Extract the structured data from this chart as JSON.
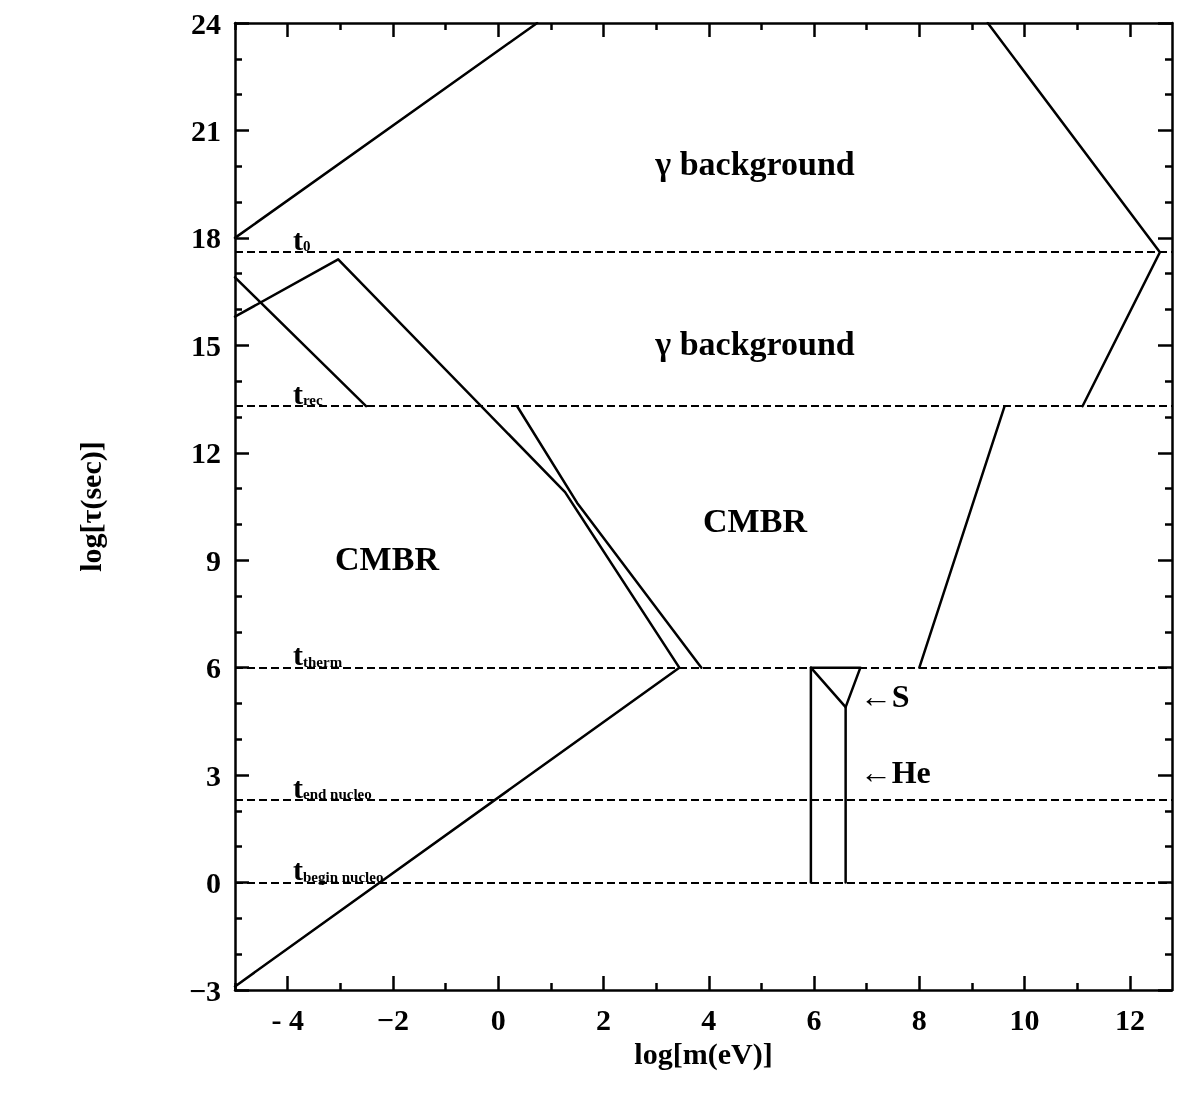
{
  "chart_data": {
    "type": "line",
    "xlabel": "log[m(eV)]",
    "ylabel": "log[τ(sec)]",
    "xlim": [
      -5,
      12.8
    ],
    "ylim": [
      -3,
      24
    ],
    "xticks": [
      {
        "value": -5,
        "label": null
      },
      {
        "value": -4,
        "label": "- 4"
      },
      {
        "value": -3,
        "label": null
      },
      {
        "value": -2,
        "label": "−2"
      },
      {
        "value": -1,
        "label": null
      },
      0,
      {
        "value": 1,
        "label": null
      },
      2,
      {
        "value": 3,
        "label": null
      },
      4,
      {
        "value": 5,
        "label": null
      },
      6,
      {
        "value": 7,
        "label": null
      },
      8,
      {
        "value": 9,
        "label": null
      },
      10,
      {
        "value": 11,
        "label": null
      },
      12
    ],
    "yticks": [
      {
        "value": -3,
        "label": "−3"
      },
      {
        "value": -2,
        "label": null
      },
      {
        "value": -1,
        "label": null
      },
      0,
      {
        "value": 1,
        "label": null
      },
      {
        "value": 2,
        "label": null
      },
      3,
      {
        "value": 4,
        "label": null
      },
      {
        "value": 5,
        "label": null
      },
      6,
      {
        "value": 7,
        "label": null
      },
      {
        "value": 8,
        "label": null
      },
      9,
      {
        "value": 10,
        "label": null
      },
      {
        "value": 11,
        "label": null
      },
      12,
      {
        "value": 13,
        "label": null
      },
      {
        "value": 14,
        "label": null
      },
      15,
      {
        "value": 16,
        "label": null
      },
      {
        "value": 17,
        "label": null
      },
      18,
      {
        "value": 19,
        "label": null
      },
      {
        "value": 20,
        "label": null
      },
      21,
      {
        "value": 22,
        "label": null
      },
      {
        "value": 23,
        "label": null
      },
      24
    ],
    "marker": "none",
    "line_style": "solid",
    "series": [
      {
        "color": "#000000",
        "x": [
          -5,
          0.74
        ],
        "values": [
          18,
          24
        ]
      },
      {
        "color": "#000000",
        "x": [
          9.3,
          12.57,
          11.1
        ],
        "values": [
          24,
          17.6,
          13.3
        ]
      },
      {
        "color": "#000000",
        "x": [
          -5,
          -2.51
        ],
        "values": [
          16.9,
          13.3
        ]
      },
      {
        "color": "#000000",
        "x": [
          -5,
          -3.04,
          1.27,
          3.44,
          -5
        ],
        "values": [
          15.8,
          17.4,
          10.9,
          6,
          -2.9
        ]
      },
      {
        "color": "#000000",
        "x": [
          0.36,
          1.5,
          3.86
        ],
        "values": [
          13.3,
          10.6,
          6
        ]
      },
      {
        "color": "#000000",
        "x": [
          8.0,
          9.62
        ],
        "values": [
          6,
          13.3
        ]
      },
      {
        "color": "#000000",
        "x": [
          5.94,
          5.94,
          6.88,
          6.6,
          6.6
        ],
        "values": [
          0,
          6,
          6,
          4.9,
          0
        ]
      },
      {
        "color": "#000000",
        "x": [
          5.94,
          6.6
        ],
        "values": [
          6,
          4.9
        ]
      }
    ],
    "ref_lines": [
      {
        "axis": "y",
        "value": 17.6,
        "label": "t$_{0}$",
        "color": "#000000",
        "line_style": "dashed"
      },
      {
        "axis": "y",
        "value": 13.3,
        "label": "t$_{rec}$",
        "color": "#000000",
        "line_style": "dashed"
      },
      {
        "axis": "y",
        "value": 6,
        "label": "t$_{therm}$",
        "color": "#000000",
        "line_style": "dashed"
      },
      {
        "axis": "y",
        "value": 2.3,
        "label": "t$_{end nucleo}$",
        "color": "#000000",
        "line_style": "dashed"
      },
      {
        "axis": "y",
        "value": 0,
        "label": "t$_{begin nucleo}$",
        "color": "#000000",
        "line_style": "dashed"
      }
    ],
    "annotations": [
      "γ background",
      "γ background",
      "CMBR",
      "CMBR",
      {
        "text": "←S",
        "x": 6.6,
        "y": 5.2
      },
      {
        "text": "←He",
        "x": 6.6,
        "y": 3.1
      }
    ]
  }
}
